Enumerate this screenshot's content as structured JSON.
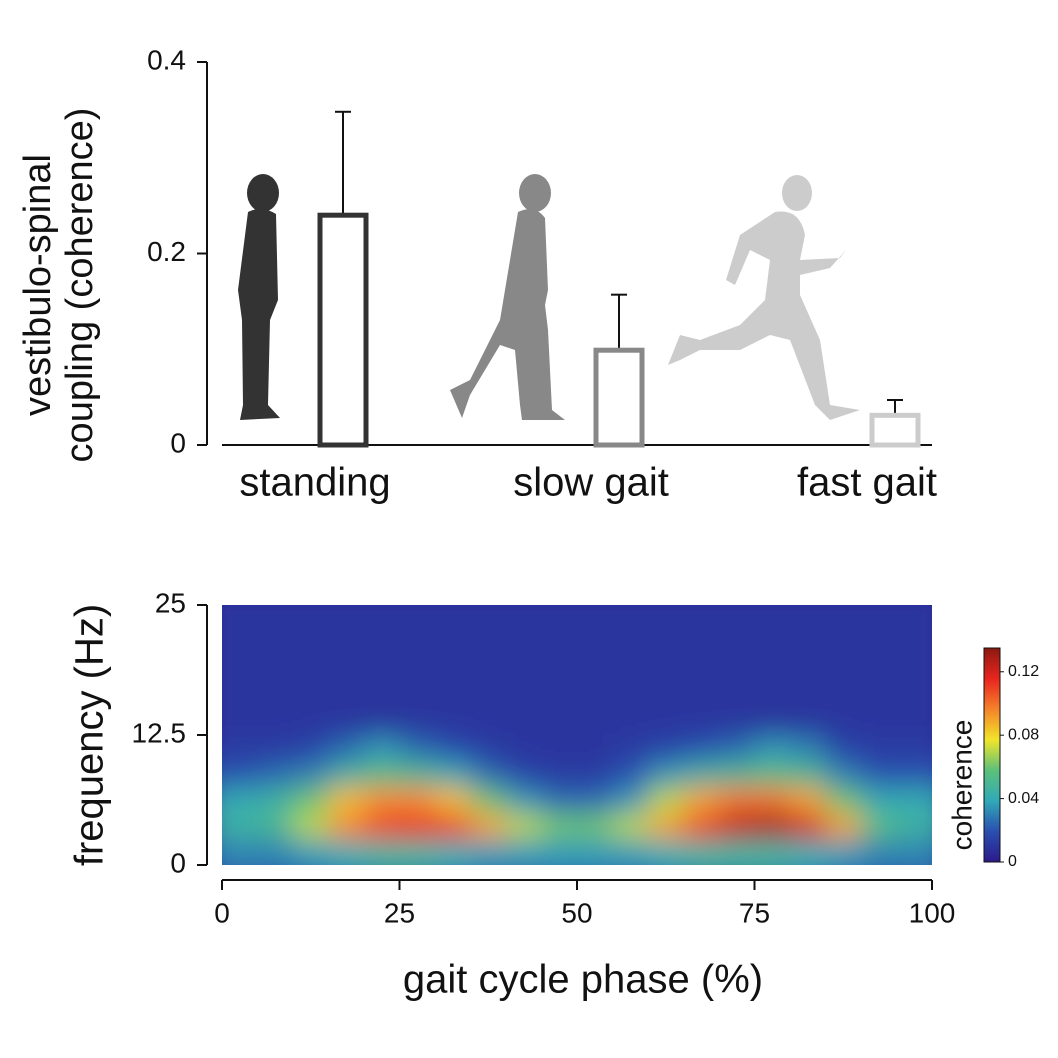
{
  "chart_data": [
    {
      "type": "bar",
      "ylabel": [
        "vestibulo-spinal",
        "coupling (coherence)"
      ],
      "categories": [
        "standing",
        "slow gait",
        "fast gait"
      ],
      "values": [
        0.24,
        0.099,
        0.031
      ],
      "errors": [
        0.108,
        0.058,
        0.016
      ],
      "colors": [
        "#333333",
        "#888888",
        "#cccccc"
      ],
      "ylim": [
        0,
        0.4
      ],
      "yticks": [
        0,
        0.2,
        0.4
      ]
    },
    {
      "type": "heatmap",
      "xlabel": "gait cycle phase (%)",
      "ylabel": "frequency (Hz)",
      "xlim": [
        0,
        100
      ],
      "xticks": [
        0,
        25,
        50,
        75,
        100
      ],
      "ylim": [
        0,
        25
      ],
      "yticks": [
        0,
        12.5,
        25
      ],
      "xbins": [
        0,
        5,
        10,
        15,
        20,
        25,
        30,
        35,
        40,
        45,
        50,
        55,
        60,
        65,
        70,
        75,
        80,
        85,
        90,
        95,
        100
      ],
      "ybins": [
        0,
        2.5,
        5,
        7.5,
        10,
        12.5,
        25
      ],
      "z": [
        [
          0.03,
          0.03,
          0.035,
          0.04,
          0.045,
          0.045,
          0.04,
          0.035,
          0.035,
          0.035,
          0.035,
          0.035,
          0.04,
          0.045,
          0.045,
          0.045,
          0.04,
          0.035,
          0.03,
          0.03
        ],
        [
          0.045,
          0.05,
          0.07,
          0.095,
          0.11,
          0.115,
          0.11,
          0.09,
          0.07,
          0.06,
          0.06,
          0.07,
          0.09,
          0.11,
          0.125,
          0.13,
          0.12,
          0.09,
          0.055,
          0.045
        ],
        [
          0.04,
          0.045,
          0.06,
          0.085,
          0.095,
          0.095,
          0.085,
          0.06,
          0.035,
          0.025,
          0.025,
          0.035,
          0.07,
          0.09,
          0.1,
          0.1,
          0.09,
          0.06,
          0.04,
          0.04
        ],
        [
          0.02,
          0.025,
          0.03,
          0.045,
          0.055,
          0.05,
          0.04,
          0.025,
          0.015,
          0.012,
          0.012,
          0.02,
          0.035,
          0.045,
          0.05,
          0.055,
          0.05,
          0.03,
          0.02,
          0.02
        ],
        [
          0.012,
          0.012,
          0.015,
          0.025,
          0.035,
          0.025,
          0.018,
          0.012,
          0.01,
          0.01,
          0.01,
          0.012,
          0.015,
          0.02,
          0.025,
          0.035,
          0.03,
          0.015,
          0.012,
          0.012
        ],
        [
          0.01,
          0.01,
          0.01,
          0.01,
          0.01,
          0.01,
          0.01,
          0.01,
          0.01,
          0.01,
          0.01,
          0.01,
          0.01,
          0.01,
          0.01,
          0.01,
          0.01,
          0.01,
          0.01,
          0.01
        ]
      ],
      "colormap": [
        "#2b1a8a",
        "#2a4fb0",
        "#31a9b8",
        "#5cc17a",
        "#f2e52a",
        "#f5822a",
        "#e8241f",
        "#8b1a10"
      ],
      "colorbar_label": "coherence",
      "clim": [
        0,
        0.135
      ],
      "cticks": [
        0,
        0.04,
        0.08,
        0.12
      ]
    }
  ]
}
